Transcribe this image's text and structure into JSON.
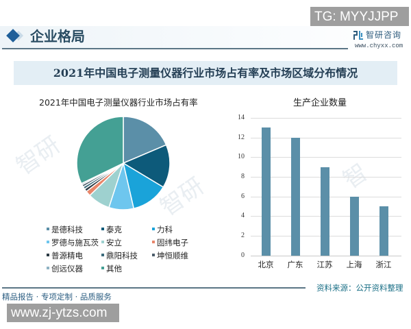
{
  "watermark_top": "TG: MYYJJPP",
  "header": {
    "title": "企业格局",
    "logo_name": "智研咨询",
    "logo_url": "www.chyxx.com"
  },
  "banner": {
    "title": "2021年中国电子测量仪器行业市场占有率及市场区域分布情况"
  },
  "footer": {
    "source": "资料来源：公开资料整理",
    "slogan": "精品报告 · 专项定制 · 品质服务",
    "watermark_url": "www.zj-ytzs.com"
  },
  "colors": {
    "bar": "#5b8fa8",
    "header_line": "#5a7585",
    "banner_bg": "#e3eef5"
  },
  "chart_data": [
    {
      "type": "pie",
      "title": "2021年中国电子测量仪器行业市场占有率",
      "labels": [
        "是德科技",
        "泰克",
        "力科",
        "罗德与施瓦茨",
        "安立",
        "固纬电子",
        "普源精电",
        "鼎阳科技",
        "坤恒顺维",
        "创远仪器",
        "其他"
      ],
      "values": [
        18.6,
        15.0,
        12.8,
        8.6,
        7.8,
        1.8,
        1.0,
        0.9,
        0.8,
        0.5,
        32.2
      ],
      "colors": [
        "#5b8fa8",
        "#0d5a7a",
        "#1aa3d9",
        "#6ec6ee",
        "#9ed1cf",
        "#e8866a",
        "#2b3a44",
        "#3c6b7b",
        "#4d5e6b",
        "#8fb3c4",
        "#44a094"
      ],
      "legend_position": "bottom",
      "unit": "%"
    },
    {
      "type": "bar",
      "title": "生产企业数量",
      "categories": [
        "北京",
        "广东",
        "江苏",
        "上海",
        "浙江"
      ],
      "values": [
        13,
        12,
        9,
        6,
        5
      ],
      "xlabel": "",
      "ylabel": "",
      "ylim": [
        0,
        14
      ],
      "yticks": [
        "0",
        "2",
        "4",
        "6",
        "8",
        "10",
        "12",
        "14"
      ],
      "grid": true
    }
  ]
}
